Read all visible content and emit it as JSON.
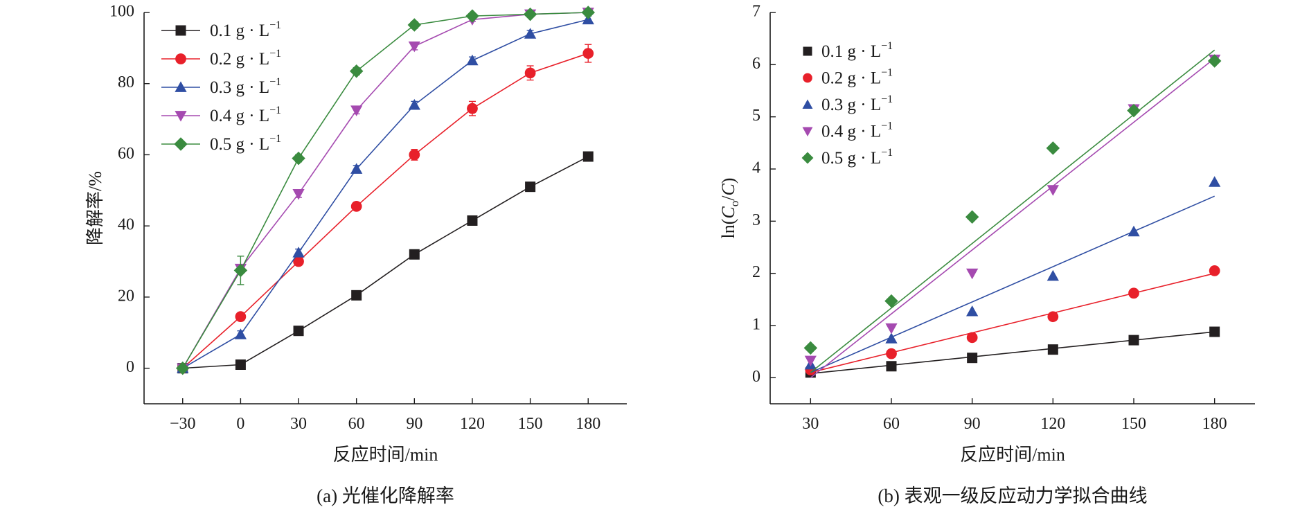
{
  "chart_data": [
    {
      "id": "a",
      "type": "line",
      "caption": "(a) 光催化降解率",
      "xlabel": "反应时间/min",
      "ylabel": "降解率/%",
      "xlim": [
        -50,
        200
      ],
      "ylim": [
        -10,
        100
      ],
      "xticks": [
        -30,
        0,
        30,
        60,
        90,
        120,
        150,
        180
      ],
      "yticks": [
        0,
        20,
        40,
        60,
        80,
        100
      ],
      "x": [
        -30,
        0,
        30,
        60,
        90,
        120,
        150,
        180
      ],
      "grid": false,
      "legend_position": "top-left",
      "series": [
        {
          "name": "0.1 g · L",
          "sup": "−1",
          "color": "#231f20",
          "marker": "square",
          "values": [
            0,
            1,
            10.5,
            20.5,
            32,
            41.5,
            51,
            59.5
          ],
          "errors": [
            0,
            0,
            0,
            0,
            0,
            0,
            0,
            0
          ]
        },
        {
          "name": "0.2 g · L",
          "sup": "−1",
          "color": "#e8202a",
          "marker": "circle",
          "values": [
            0,
            14.5,
            30,
            45.5,
            60,
            73,
            83,
            88.5
          ],
          "errors": [
            0,
            1,
            1,
            1,
            1.5,
            2,
            2,
            2.5
          ]
        },
        {
          "name": "0.3 g · L",
          "sup": "−1",
          "color": "#2f4ea3",
          "marker": "triangle-up",
          "values": [
            0,
            9.5,
            32.5,
            56,
            74,
            86.5,
            94,
            98
          ],
          "errors": [
            0,
            1,
            1,
            1,
            1,
            1,
            1,
            1
          ]
        },
        {
          "name": "0.4 g · L",
          "sup": "−1",
          "color": "#a54ab0",
          "marker": "triangle-down",
          "values": [
            0,
            28,
            49,
            72.5,
            90.5,
            98,
            99.5,
            100
          ],
          "errors": [
            0,
            1,
            1,
            1,
            1,
            0.5,
            0.5,
            0.5
          ]
        },
        {
          "name": "0.5 g · L",
          "sup": "−1",
          "color": "#3a8b3f",
          "marker": "diamond",
          "values": [
            0,
            27.5,
            59,
            83.5,
            96.5,
            99,
            99.5,
            100
          ],
          "errors": [
            0,
            4,
            1,
            1,
            1,
            0.5,
            0.5,
            0.5
          ]
        }
      ]
    },
    {
      "id": "b",
      "type": "scatter",
      "caption": "(b) 表观一级反应动力学拟合曲线",
      "xlabel": "反应时间/min",
      "ylabel_parts": [
        "ln(",
        "C",
        "o",
        "/",
        "C",
        ")"
      ],
      "xlim": [
        15,
        195
      ],
      "ylim": [
        -0.5,
        7
      ],
      "xticks": [
        30,
        60,
        90,
        120,
        150,
        180
      ],
      "yticks": [
        0,
        1,
        2,
        3,
        4,
        5,
        6,
        7
      ],
      "x": [
        30,
        60,
        90,
        120,
        150,
        180
      ],
      "grid": false,
      "legend_position": "top-left",
      "series": [
        {
          "name": "0.1 g · L",
          "sup": "−1",
          "color": "#231f20",
          "marker": "square",
          "values": [
            0.1,
            0.22,
            0.38,
            0.54,
            0.72,
            0.88
          ],
          "fit": [
            [
              30,
              0.08
            ],
            [
              180,
              0.88
            ]
          ]
        },
        {
          "name": "0.2 g · L",
          "sup": "−1",
          "color": "#e8202a",
          "marker": "circle",
          "values": [
            0.15,
            0.46,
            0.77,
            1.17,
            1.62,
            2.05
          ],
          "fit": [
            [
              30,
              0.1
            ],
            [
              180,
              2.0
            ]
          ]
        },
        {
          "name": "0.3 g · L",
          "sup": "−1",
          "color": "#2f4ea3",
          "marker": "triangle-up",
          "values": [
            0.25,
            0.75,
            1.27,
            1.95,
            2.8,
            3.75
          ],
          "fit": [
            [
              30,
              0.1
            ],
            [
              180,
              3.48
            ]
          ]
        },
        {
          "name": "0.4 g · L",
          "sup": "−1",
          "color": "#a54ab0",
          "marker": "triangle-down",
          "values": [
            0.33,
            0.95,
            2.0,
            3.6,
            5.15,
            6.1
          ],
          "fit": [
            [
              30,
              0.0
            ],
            [
              180,
              6.12
            ]
          ]
        },
        {
          "name": "0.5 g · L",
          "sup": "−1",
          "color": "#3a8b3f",
          "marker": "diamond",
          "values": [
            0.57,
            1.47,
            3.08,
            4.4,
            5.12,
            6.07
          ],
          "fit": [
            [
              30,
              0.1
            ],
            [
              180,
              6.28
            ]
          ]
        }
      ]
    }
  ]
}
